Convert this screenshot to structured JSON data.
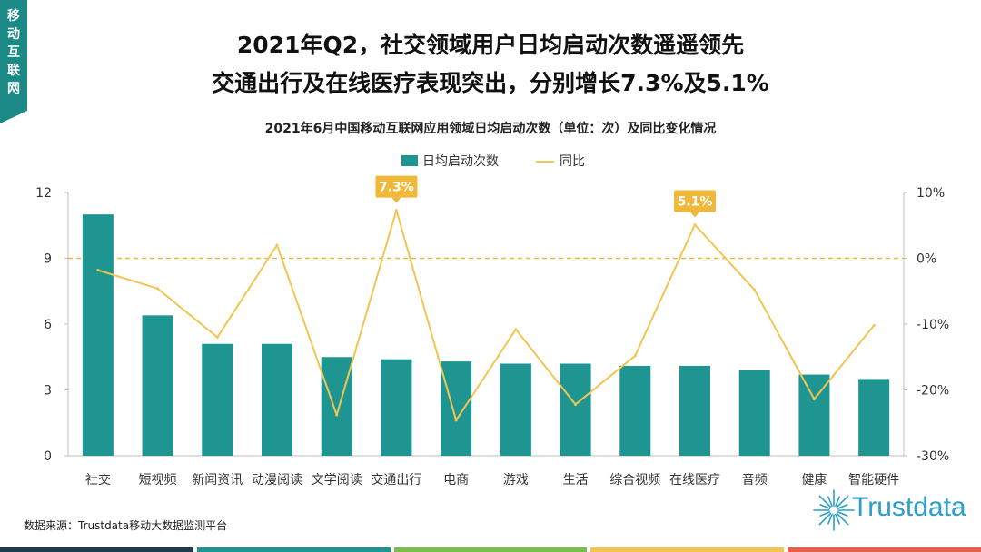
{
  "corner_tag": "移动互联网",
  "headline": {
    "line1": "2021年Q2，社交领域用户日均启动次数遥遥领先",
    "line2": "交通出行及在线医疗表现突出，分别增长7.3%及5.1%"
  },
  "colors": {
    "bar": "#1e9590",
    "line": "#f2c552",
    "tag": "#1b8a87",
    "callout": "#f0b83a",
    "stripe": [
      "#1f3a4a",
      "#1e9590",
      "#7bbd4a",
      "#f2c552",
      "#e8604c"
    ]
  },
  "chart_data": {
    "type": "bar+line",
    "title": "2021年6月中国移动互联网应用领域日均启动次数（单位：次）及同比变化情况",
    "categories": [
      "社交",
      "短视频",
      "新闻资讯",
      "动漫阅读",
      "文学阅读",
      "交通出行",
      "电商",
      "游戏",
      "生活",
      "综合视频",
      "在线医疗",
      "音频",
      "健康",
      "智能硬件"
    ],
    "series": [
      {
        "name": "日均启动次数",
        "kind": "bar",
        "axis": "left",
        "values": [
          11.0,
          6.4,
          5.1,
          5.1,
          4.5,
          4.4,
          4.3,
          4.2,
          4.2,
          4.1,
          4.1,
          3.9,
          3.7,
          3.5
        ]
      },
      {
        "name": "同比",
        "kind": "line",
        "axis": "right",
        "unit": "%",
        "values": [
          -1.8,
          -4.6,
          -12.0,
          2.0,
          -23.8,
          7.3,
          -24.6,
          -10.8,
          -22.2,
          -14.8,
          5.1,
          -4.8,
          -21.4,
          -10.2
        ]
      }
    ],
    "left_axis": {
      "min": 0,
      "max": 12,
      "ticks": [
        0,
        3,
        6,
        9,
        12
      ]
    },
    "right_axis": {
      "min": -30,
      "max": 10,
      "ticks": [
        "10%",
        "0%",
        "-10%",
        "-20%",
        "-30%"
      ],
      "tick_values": [
        10,
        0,
        -10,
        -20,
        -30
      ]
    },
    "zero_reference_line": {
      "axis": "right",
      "value": 0,
      "style": "dashed"
    },
    "callouts": [
      {
        "category": "交通出行",
        "label": "7.3%"
      },
      {
        "category": "在线医疗",
        "label": "5.1%"
      }
    ],
    "legend": {
      "position": "top"
    }
  },
  "source": "数据来源：Trustdata移动大数据监测平台",
  "logo_text": "Trustdata"
}
